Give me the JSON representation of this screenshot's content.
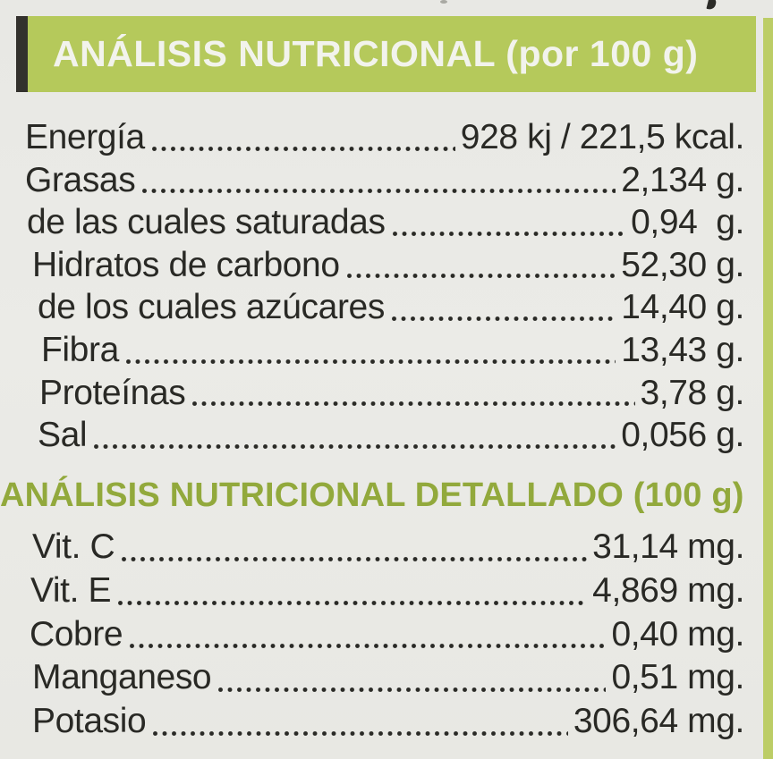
{
  "colors": {
    "header_bar_green": "#b5c95b",
    "header_text": "#f2f3ec",
    "detail_header_green": "#92a93c",
    "body_text": "#292925",
    "background": "#e9e9e5",
    "right_edge_strip": "#bccd66",
    "left_black_tab": "#33312d"
  },
  "main_header": {
    "title": "ANÁLISIS NUTRICIONAL (por 100 g)"
  },
  "nutrition_rows": [
    {
      "label": "Energía",
      "value": "928 kj / 221,5 kcal."
    },
    {
      "label": "Grasas",
      "value": "2,134 g."
    },
    {
      "label": "de las cuales saturadas",
      "value": "0,94  g."
    },
    {
      "label": "Hidratos de carbono",
      "value": "52,30 g."
    },
    {
      "label": "de los cuales azúcares",
      "value": "14,40 g."
    },
    {
      "label": "Fibra",
      "value": "13,43 g."
    },
    {
      "label": "Proteínas",
      "value": "3,78 g."
    },
    {
      "label": "Sal",
      "value": "0,056 g."
    }
  ],
  "detail_header": {
    "title": "ANÁLISIS NUTRICIONAL DETALLADO (100 g)"
  },
  "detail_rows": [
    {
      "label": "Vit. C",
      "value": "31,14 mg."
    },
    {
      "label": "Vit. E",
      "value": "4,869 mg."
    },
    {
      "label": "Cobre",
      "value": "0,40 mg."
    },
    {
      "label": "Manganeso",
      "value": "0,51 mg."
    },
    {
      "label": "Potasio",
      "value": "306,64 mg."
    }
  ]
}
